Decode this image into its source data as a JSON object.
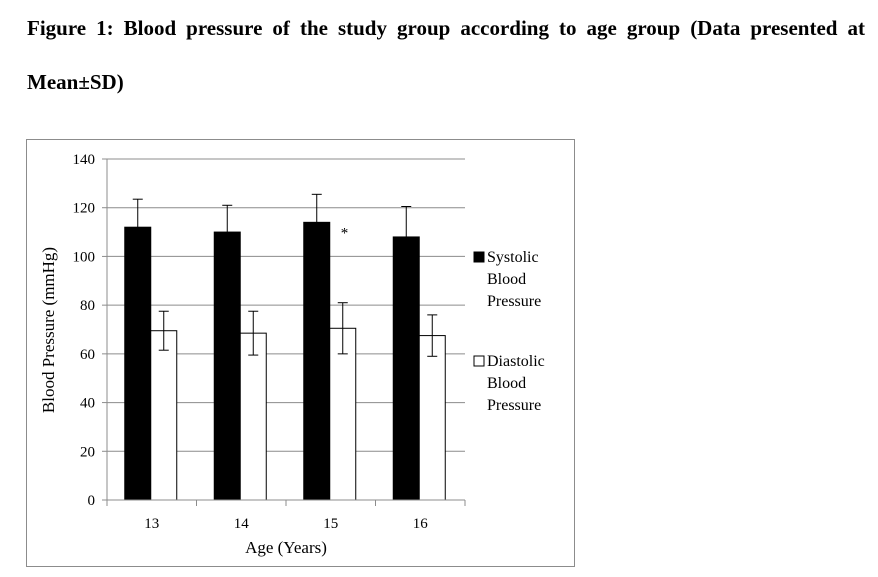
{
  "caption": {
    "line1": "Figure 1: Blood pressure of the study group according to age group (Data presented at",
    "line2": "Mean±SD)"
  },
  "chart_data": {
    "type": "bar",
    "categories": [
      "13",
      "14",
      "15",
      "16"
    ],
    "series": [
      {
        "name": "Systolic Blood Pressure",
        "legend_lines": [
          "Systolic",
          "Blood",
          "Pressure"
        ],
        "color": "#000000",
        "values": [
          112,
          110,
          114,
          108
        ],
        "sd": [
          11.5,
          11,
          11.5,
          12.5
        ]
      },
      {
        "name": "Diastolic Blood Pressure",
        "legend_lines": [
          "Diastolic",
          "Blood",
          "Pressure"
        ],
        "color": "#ffffff",
        "values": [
          69.5,
          68.5,
          70.5,
          67.5
        ],
        "sd": [
          8,
          9,
          10.5,
          8.5
        ]
      }
    ],
    "xlabel": "Age (Years)",
    "ylabel": "Blood Pressure (mmHg)",
    "ylim": [
      0,
      140
    ],
    "yticks": [
      "0",
      "20",
      "40",
      "60",
      "80",
      "100",
      "120",
      "140"
    ],
    "grid": true,
    "legend_position": "right",
    "annotations": [
      {
        "category": "15",
        "text": "*"
      }
    ]
  }
}
